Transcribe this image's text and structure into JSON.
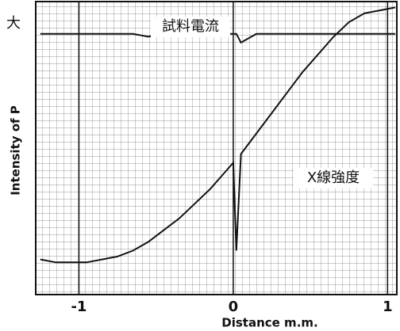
{
  "chart_data": {
    "type": "line",
    "x_label": "Distance  m.m.",
    "y_label": "Intensity of P",
    "side_label": "大",
    "x": [
      -1.25,
      -1.15,
      -1.05,
      -0.95,
      -0.85,
      -0.75,
      -0.65,
      -0.55,
      -0.45,
      -0.35,
      -0.25,
      -0.15,
      -0.05,
      0,
      0.02,
      0.05,
      0.15,
      0.25,
      0.35,
      0.45,
      0.55,
      0.65,
      0.75,
      0.85,
      0.95,
      1.05
    ],
    "series": [
      {
        "name": "試料電流",
        "color": "#111111",
        "values": [
          89,
          89,
          89,
          89,
          89,
          89,
          89,
          88,
          89,
          89,
          89,
          89,
          89,
          89,
          89,
          86,
          89,
          89,
          89,
          89,
          89,
          89,
          89,
          89,
          89,
          89
        ]
      },
      {
        "name": "X線強度",
        "color": "#111111",
        "values": [
          12,
          11,
          11,
          11,
          12,
          13,
          15,
          18,
          22,
          26,
          31,
          36,
          42,
          45,
          15,
          48,
          55,
          62,
          69,
          76,
          82,
          88,
          93,
          96,
          97,
          98
        ]
      }
    ],
    "xlim": [
      -1.28,
      1.06
    ],
    "xticks": [
      -1,
      0,
      1
    ],
    "ylim": [
      0,
      100
    ],
    "grid": true
  }
}
